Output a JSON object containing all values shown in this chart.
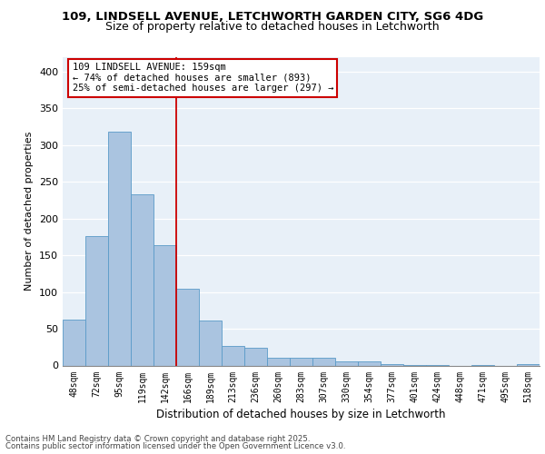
{
  "title1": "109, LINDSELL AVENUE, LETCHWORTH GARDEN CITY, SG6 4DG",
  "title2": "Size of property relative to detached houses in Letchworth",
  "xlabel": "Distribution of detached houses by size in Letchworth",
  "ylabel": "Number of detached properties",
  "categories": [
    "48sqm",
    "72sqm",
    "95sqm",
    "119sqm",
    "142sqm",
    "166sqm",
    "189sqm",
    "213sqm",
    "236sqm",
    "260sqm",
    "283sqm",
    "307sqm",
    "330sqm",
    "354sqm",
    "377sqm",
    "401sqm",
    "424sqm",
    "448sqm",
    "471sqm",
    "495sqm",
    "518sqm"
  ],
  "values": [
    62,
    176,
    318,
    233,
    164,
    105,
    61,
    27,
    24,
    10,
    11,
    10,
    6,
    5,
    2,
    1,
    1,
    0,
    1,
    0,
    2
  ],
  "bar_color": "#aac4e0",
  "bar_edge_color": "#5a9ac8",
  "vline_x_index": 4.5,
  "vline_color": "#cc0000",
  "annotation_line1": "109 LINDSELL AVENUE: 159sqm",
  "annotation_line2": "← 74% of detached houses are smaller (893)",
  "annotation_line3": "25% of semi-detached houses are larger (297) →",
  "annotation_box_color": "#ffffff",
  "annotation_box_edge": "#cc0000",
  "ylim": [
    0,
    420
  ],
  "yticks": [
    0,
    50,
    100,
    150,
    200,
    250,
    300,
    350,
    400
  ],
  "bg_color": "#e8f0f8",
  "footnote1": "Contains HM Land Registry data © Crown copyright and database right 2025.",
  "footnote2": "Contains public sector information licensed under the Open Government Licence v3.0."
}
